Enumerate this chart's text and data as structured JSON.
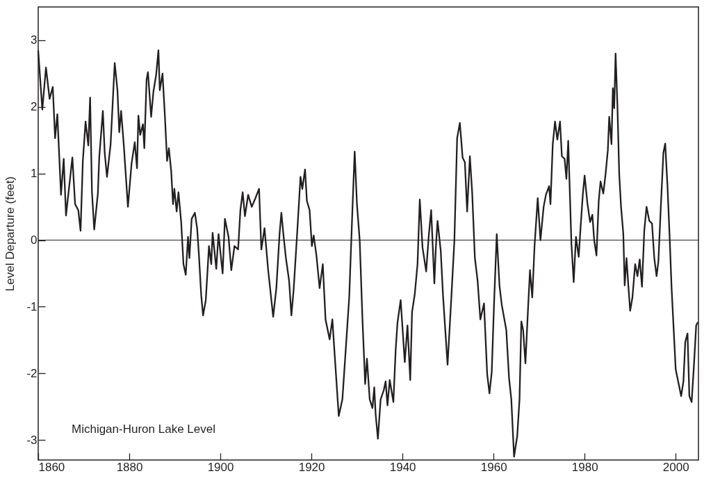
{
  "chart_data": {
    "type": "line",
    "ylabel": "Level Departure (feet)",
    "xlim": [
      1860,
      2005
    ],
    "xticks": [
      1860,
      1880,
      1900,
      1920,
      1940,
      1960,
      1980,
      2000
    ],
    "ylim": [
      -3.3,
      3.5
    ],
    "yticks": [
      -3,
      -2,
      -1,
      0,
      1,
      2,
      3
    ],
    "grid": false,
    "marker": "none",
    "line_style": "solid",
    "annotations": [
      "Michigan-Huron Lake Level"
    ],
    "ref_lines": [
      {
        "axis": "y",
        "value": 0,
        "color": "#231f20"
      }
    ],
    "series": [
      {
        "color": "#231f20",
        "x": [
          1860.0,
          1860.9,
          1861.7,
          1862.5,
          1863.2,
          1863.7,
          1864.2,
          1865.0,
          1865.6,
          1866.1,
          1867.5,
          1868.1,
          1868.8,
          1869.3,
          1869.8,
          1870.4,
          1871.0,
          1871.4,
          1871.8,
          1872.3,
          1873.1,
          1873.4,
          1874.2,
          1874.6,
          1875.1,
          1875.9,
          1876.8,
          1877.4,
          1877.8,
          1878.2,
          1878.8,
          1879.7,
          1880.5,
          1881.2,
          1881.7,
          1882.0,
          1882.4,
          1883.0,
          1883.3,
          1883.8,
          1884.1,
          1884.8,
          1885.3,
          1885.9,
          1886.4,
          1886.7,
          1887.3,
          1887.8,
          1888.3,
          1888.7,
          1889.2,
          1889.6,
          1889.9,
          1890.4,
          1890.8,
          1891.4,
          1891.9,
          1892.4,
          1892.9,
          1893.2,
          1893.7,
          1894.4,
          1894.9,
          1895.3,
          1895.8,
          1896.2,
          1896.8,
          1897.5,
          1898.0,
          1898.3,
          1899.1,
          1899.6,
          1900.5,
          1901.0,
          1901.8,
          1902.4,
          1903.1,
          1903.9,
          1904.4,
          1904.9,
          1905.4,
          1906.1,
          1906.9,
          1907.7,
          1908.5,
          1909.0,
          1909.7,
          1910.5,
          1911.6,
          1912.3,
          1913.0,
          1913.4,
          1913.9,
          1914.4,
          1915.1,
          1915.6,
          1916.1,
          1916.9,
          1917.6,
          1918.0,
          1918.6,
          1919.0,
          1919.6,
          1920.1,
          1920.5,
          1921.1,
          1921.8,
          1922.5,
          1923.1,
          1924.0,
          1924.6,
          1925.3,
          1926.0,
          1926.8,
          1927.6,
          1928.3,
          1929.0,
          1929.5,
          1930.0,
          1930.6,
          1931.2,
          1931.8,
          1932.2,
          1932.8,
          1933.4,
          1933.8,
          1934.1,
          1934.6,
          1935.2,
          1935.9,
          1936.3,
          1936.7,
          1937.2,
          1938.0,
          1938.5,
          1938.9,
          1939.6,
          1940.5,
          1941.1,
          1941.7,
          1942.1,
          1942.7,
          1943.3,
          1943.8,
          1944.4,
          1945.2,
          1945.8,
          1946.3,
          1947.0,
          1947.3,
          1947.7,
          1948.4,
          1948.9,
          1949.9,
          1950.7,
          1951.4,
          1952.0,
          1952.6,
          1953.2,
          1953.7,
          1954.2,
          1954.8,
          1955.3,
          1955.9,
          1956.5,
          1957.1,
          1957.9,
          1958.6,
          1959.1,
          1959.6,
          1960.1,
          1960.7,
          1961.3,
          1961.8,
          1962.8,
          1963.4,
          1963.9,
          1964.5,
          1965.2,
          1965.7,
          1966.1,
          1966.5,
          1967.0,
          1967.6,
          1968.0,
          1968.5,
          1969.0,
          1969.7,
          1970.3,
          1971.0,
          1971.5,
          1972.2,
          1972.5,
          1973.0,
          1973.5,
          1974.0,
          1974.6,
          1975.0,
          1975.6,
          1976.0,
          1976.4,
          1977.1,
          1977.6,
          1978.1,
          1978.7,
          1979.1,
          1979.6,
          1980.0,
          1980.6,
          1981.2,
          1981.7,
          1982.1,
          1982.6,
          1983.1,
          1983.5,
          1984.1,
          1984.6,
          1985.1,
          1985.4,
          1985.9,
          1986.2,
          1986.5,
          1986.8,
          1987.2,
          1987.6,
          1988.0,
          1988.5,
          1988.8,
          1989.2,
          1989.6,
          1990.0,
          1990.5,
          1991.1,
          1991.6,
          1992.1,
          1992.6,
          1993.1,
          1993.6,
          1994.2,
          1994.8,
          1995.3,
          1995.8,
          1996.2,
          1996.7,
          1997.3,
          1997.7,
          1998.2,
          1998.7,
          1999.1,
          1999.5,
          2000.0,
          2000.6,
          2001.2,
          2001.7,
          2002.1,
          2002.6,
          2003.0,
          2003.5,
          2004.0,
          2004.5,
          2004.8
        ],
        "values": [
          2.84,
          1.96,
          2.59,
          2.12,
          2.3,
          1.53,
          1.89,
          0.68,
          1.22,
          0.37,
          1.24,
          0.54,
          0.45,
          0.14,
          1.19,
          1.78,
          1.42,
          2.14,
          0.72,
          0.16,
          0.7,
          1.24,
          1.94,
          1.31,
          0.95,
          1.44,
          2.66,
          2.25,
          1.62,
          1.94,
          1.42,
          0.5,
          1.15,
          1.47,
          1.08,
          1.87,
          1.58,
          1.74,
          1.38,
          2.41,
          2.52,
          1.85,
          2.23,
          2.48,
          2.85,
          2.25,
          2.5,
          1.89,
          1.19,
          1.38,
          1.04,
          0.54,
          0.77,
          0.43,
          0.72,
          0.27,
          -0.36,
          -0.52,
          0.05,
          -0.27,
          0.32,
          0.41,
          0.18,
          -0.23,
          -0.83,
          -1.13,
          -0.9,
          -0.09,
          -0.36,
          0.11,
          -0.43,
          0.09,
          -0.5,
          0.32,
          0.05,
          -0.45,
          -0.09,
          -0.14,
          0.45,
          0.72,
          0.36,
          0.68,
          0.5,
          0.63,
          0.77,
          -0.14,
          0.18,
          -0.45,
          -1.15,
          -0.72,
          0.09,
          0.41,
          0.05,
          -0.27,
          -0.61,
          -1.13,
          -0.74,
          0.14,
          0.95,
          0.77,
          1.06,
          0.59,
          0.45,
          -0.09,
          0.07,
          -0.23,
          -0.72,
          -0.36,
          -1.19,
          -1.49,
          -1.19,
          -1.92,
          -2.64,
          -2.39,
          -1.58,
          -0.86,
          0.45,
          1.33,
          0.54,
          0.0,
          -1.17,
          -2.16,
          -1.78,
          -2.39,
          -2.52,
          -2.21,
          -2.61,
          -2.98,
          -2.39,
          -2.25,
          -2.12,
          -2.48,
          -2.1,
          -2.43,
          -1.65,
          -1.24,
          -0.9,
          -1.83,
          -1.28,
          -2.1,
          -1.08,
          -0.81,
          -0.36,
          0.61,
          -0.11,
          -0.47,
          0.09,
          0.45,
          -0.65,
          -0.14,
          0.29,
          -0.16,
          -0.83,
          -1.87,
          -0.9,
          0.0,
          1.53,
          1.76,
          1.24,
          1.17,
          0.43,
          1.26,
          0.72,
          -0.27,
          -0.61,
          -1.19,
          -0.95,
          -2.01,
          -2.3,
          -1.98,
          -0.97,
          0.09,
          -0.68,
          -0.97,
          -1.35,
          -2.07,
          -2.39,
          -3.25,
          -2.94,
          -2.39,
          -1.22,
          -1.35,
          -1.85,
          -0.99,
          -0.45,
          -0.86,
          -0.09,
          0.63,
          0.0,
          0.5,
          0.68,
          0.81,
          0.54,
          1.44,
          1.78,
          1.51,
          1.78,
          1.26,
          1.22,
          0.92,
          1.49,
          -0.05,
          -0.63,
          0.05,
          -0.25,
          0.18,
          0.68,
          0.97,
          0.56,
          0.27,
          0.38,
          0.0,
          -0.23,
          0.59,
          0.88,
          0.7,
          0.99,
          1.35,
          1.85,
          1.44,
          2.28,
          1.98,
          2.8,
          2.03,
          0.99,
          0.5,
          0.09,
          -0.68,
          -0.27,
          -0.68,
          -1.06,
          -0.86,
          -0.36,
          -0.54,
          -0.29,
          -0.7,
          0.14,
          0.5,
          0.29,
          0.25,
          -0.27,
          -0.54,
          -0.32,
          0.45,
          1.31,
          1.45,
          0.81,
          0.0,
          -0.72,
          -1.26,
          -1.94,
          -2.14,
          -2.34,
          -2.12,
          -1.53,
          -1.4,
          -2.34,
          -2.43,
          -1.89,
          -1.28,
          -1.24
        ]
      }
    ]
  }
}
